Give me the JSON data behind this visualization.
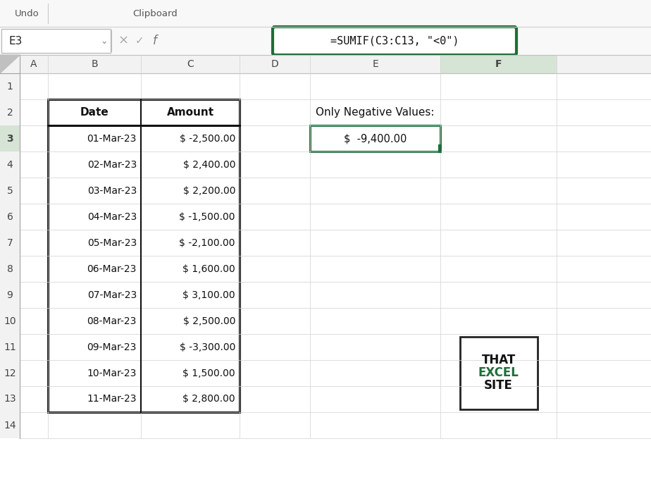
{
  "bg_color": "#f2f2f2",
  "col_header_bg": "#f2f2f2",
  "row_header_bg": "#f2f2f2",
  "selected_col_bg": "#d6e4d6",
  "grid_color": "#d0d0d0",
  "dark_green": "#1e6e3a",
  "col_labels": [
    "A",
    "B",
    "C",
    "D",
    "E",
    "F"
  ],
  "row_labels": [
    "1",
    "2",
    "3",
    "4",
    "5",
    "6",
    "7",
    "8",
    "9",
    "10",
    "11",
    "12",
    "13",
    "14"
  ],
  "dates": [
    "01-Mar-23",
    "02-Mar-23",
    "03-Mar-23",
    "04-Mar-23",
    "05-Mar-23",
    "06-Mar-23",
    "07-Mar-23",
    "08-Mar-23",
    "09-Mar-23",
    "10-Mar-23",
    "11-Mar-23"
  ],
  "amounts": [
    "$ -2,500.00",
    "$ 2,400.00",
    "$ 2,200.00",
    "$ -1,500.00",
    "$ -2,100.00",
    "$ 1,600.00",
    "$ 3,100.00",
    "$ 2,500.00",
    "$ -3,300.00",
    "$ 1,500.00",
    "$ 2,800.00"
  ],
  "cell_ref": "E3",
  "formula": "=SUMIF(C3:C13, \"<0\")",
  "label_neg": "Only Negative Values:",
  "result_value": "$  -9,400.00",
  "logo_line1": "THAT",
  "logo_line2": "EXCEL",
  "logo_line3": "SITE",
  "logo_green": "#1e6e3a",
  "toolbar_undo": "Undo",
  "toolbar_clipboard": "Clipboard"
}
